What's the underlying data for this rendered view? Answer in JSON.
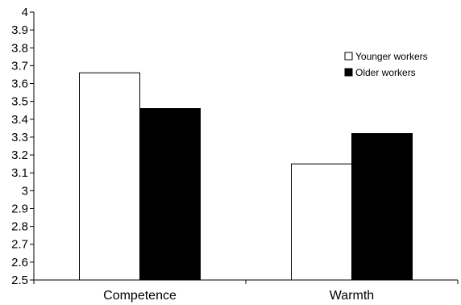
{
  "chart_data": {
    "type": "bar",
    "categories": [
      "Competence",
      "Warmth"
    ],
    "series": [
      {
        "name": "Younger workers",
        "values": [
          3.66,
          3.15
        ],
        "color": "#ffffff"
      },
      {
        "name": "Older workers",
        "values": [
          3.46,
          3.32
        ],
        "color": "#000000"
      }
    ],
    "ylim": [
      2.5,
      4
    ],
    "yticks": [
      "2.5",
      "2.6",
      "2.7",
      "2.8",
      "2.9",
      "3",
      "3.1",
      "3.2",
      "3.3",
      "3.4",
      "3.5",
      "3.6",
      "3.7",
      "3.8",
      "3.9",
      "4"
    ],
    "title": "",
    "xlabel": "",
    "ylabel": "",
    "grid": false,
    "legend_position": "top-right"
  }
}
